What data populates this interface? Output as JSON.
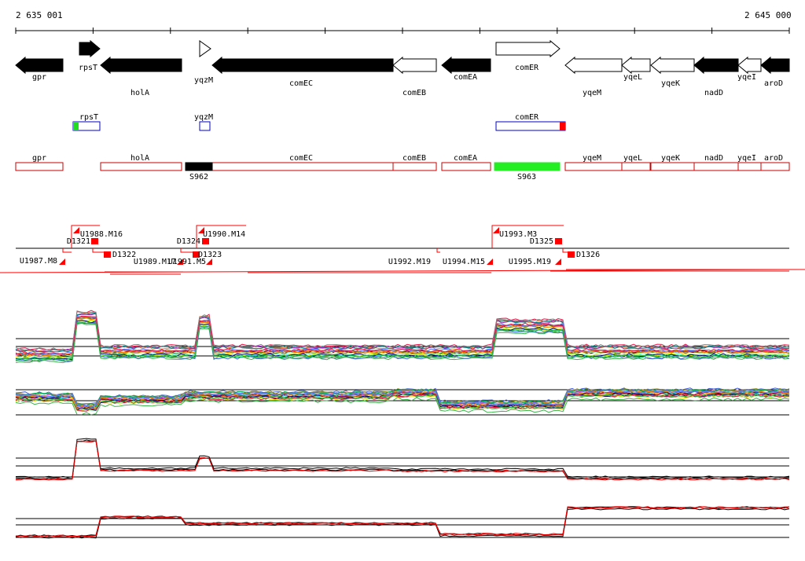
{
  "coords": {
    "start": "2 635 001",
    "end": "2 645 000"
  },
  "genes": [
    {
      "name": "gpr",
      "strand": "-",
      "fill": "black"
    },
    {
      "name": "rpsT",
      "strand": "+",
      "fill": "black"
    },
    {
      "name": "holA",
      "strand": "-",
      "fill": "black"
    },
    {
      "name": "yqzM",
      "strand": "+",
      "fill": "white"
    },
    {
      "name": "comEC",
      "strand": "-",
      "fill": "black"
    },
    {
      "name": "comEB",
      "strand": "-",
      "fill": "white"
    },
    {
      "name": "comEA",
      "strand": "-",
      "fill": "black"
    },
    {
      "name": "comER",
      "strand": "+",
      "fill": "white"
    },
    {
      "name": "yqeM",
      "strand": "-",
      "fill": "white"
    },
    {
      "name": "yqeL",
      "strand": "-",
      "fill": "white"
    },
    {
      "name": "yqeK",
      "strand": "-",
      "fill": "white"
    },
    {
      "name": "nadD",
      "strand": "-",
      "fill": "black"
    },
    {
      "name": "yqeI",
      "strand": "-",
      "fill": "white"
    },
    {
      "name": "aroD",
      "strand": "-",
      "fill": "black"
    }
  ],
  "plus_boxes": [
    {
      "name": "rpsT",
      "mark": "#22dd22"
    },
    {
      "name": "yqzM",
      "mark": ""
    },
    {
      "name": "comER",
      "mark": "#ff0000"
    }
  ],
  "minus_boxes": [
    "gpr",
    "holA",
    "comEC",
    "comEB",
    "comEA",
    "yqeM",
    "yqeL",
    "yqeK",
    "nadD",
    "yqeI",
    "aroD"
  ],
  "sig_boxes": [
    {
      "label": "S962",
      "color": "#000000"
    },
    {
      "label": "S963",
      "color": "#22ee22"
    }
  ],
  "segments": [
    "U1988.M16",
    "D1321",
    "D1322",
    "U1987.M8",
    "U1989.M17",
    "U1991.M5",
    "D1324",
    "U1990.M14",
    "D1323",
    "U1992.M19",
    "U1994.M15",
    "U1993.M3",
    "D1325",
    "U1995.M19",
    "D1326"
  ],
  "colors": {
    "gene_outline": "#cc0000",
    "plus_outline": "#0000cc",
    "segment": "#ff0000",
    "axis": "#000000"
  }
}
